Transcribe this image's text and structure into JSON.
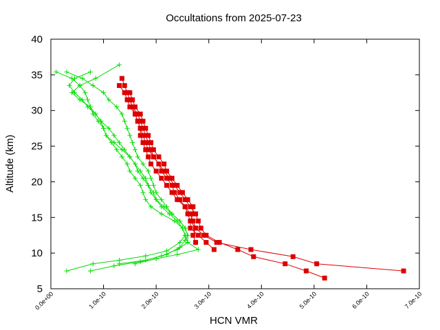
{
  "chart_data": {
    "type": "scatter",
    "title": "Occultations from 2025-07-23",
    "xlabel": "HCN VMR",
    "ylabel": "Altitude (km)",
    "xlim": [
      0,
      7e-10
    ],
    "ylim": [
      5,
      40
    ],
    "x_ticks": [
      0,
      1e-10,
      2e-10,
      3e-10,
      4e-10,
      5e-10,
      6e-10,
      7e-10
    ],
    "x_tick_labels": [
      "0.0e+00",
      "1.0e-10",
      "2.0e-10",
      "3.0e-10",
      "4.0e-10",
      "5.0e-10",
      "6.0e-10",
      "7.0e-10"
    ],
    "y_ticks": [
      5,
      10,
      15,
      20,
      25,
      30,
      35,
      40
    ],
    "y_tick_labels": [
      "5",
      "10",
      "15",
      "20",
      "25",
      "30",
      "35",
      "40"
    ],
    "grid": false,
    "legend": "none",
    "series": [
      {
        "color": "#00dd00",
        "marker": "plus",
        "points": [
          [
            3e-11,
            7.5
          ],
          [
            8e-11,
            8.5
          ],
          [
            1.3e-10,
            9.0
          ],
          [
            1.8e-10,
            9.6
          ],
          [
            2.2e-10,
            10.3
          ],
          [
            2.45e-10,
            11.5
          ],
          [
            2.55e-10,
            12.5
          ],
          [
            2.5e-10,
            13.5
          ],
          [
            2.35e-10,
            14.5
          ],
          [
            2.1e-10,
            15.5
          ],
          [
            1.9e-10,
            16.5
          ],
          [
            1.8e-10,
            17.5
          ],
          [
            1.75e-10,
            18.5
          ],
          [
            1.7e-10,
            19.5
          ],
          [
            1.6e-10,
            20.5
          ],
          [
            1.5e-10,
            21.5
          ],
          [
            1.45e-10,
            22.5
          ],
          [
            1.35e-10,
            23.5
          ],
          [
            1.25e-10,
            24.5
          ],
          [
            1.15e-10,
            25.5
          ],
          [
            1.05e-10,
            26.5
          ],
          [
            1e-10,
            27.5
          ],
          [
            9e-11,
            28.5
          ],
          [
            8e-11,
            29.5
          ],
          [
            7.5e-11,
            30.5
          ],
          [
            7e-11,
            31.5
          ],
          [
            6.5e-11,
            32.5
          ],
          [
            5.5e-11,
            33.5
          ],
          [
            4e-11,
            34.5
          ],
          [
            1e-11,
            35.4
          ]
        ]
      },
      {
        "color": "#00dd00",
        "marker": "plus",
        "points": [
          [
            7.5e-11,
            7.5
          ],
          [
            1.2e-10,
            8.2
          ],
          [
            1.7e-10,
            8.8
          ],
          [
            2.1e-10,
            9.6
          ],
          [
            2.4e-10,
            10.5
          ],
          [
            2.6e-10,
            11.5
          ],
          [
            2.6e-10,
            12.5
          ],
          [
            2.55e-10,
            13.5
          ],
          [
            2.45e-10,
            14.5
          ],
          [
            2.3e-10,
            15.5
          ],
          [
            2.15e-10,
            16.5
          ],
          [
            2e-10,
            17.5
          ],
          [
            1.9e-10,
            18.5
          ],
          [
            1.85e-10,
            19.5
          ],
          [
            1.8e-10,
            20.5
          ],
          [
            1.7e-10,
            21.5
          ],
          [
            1.6e-10,
            22.5
          ],
          [
            1.5e-10,
            23.5
          ],
          [
            1.35e-10,
            24.5
          ],
          [
            1.2e-10,
            25.5
          ],
          [
            1.05e-10,
            26.5
          ],
          [
            1e-10,
            27.5
          ],
          [
            9.5e-11,
            28.5
          ],
          [
            8.5e-11,
            29.5
          ],
          [
            7e-11,
            30.5
          ],
          [
            6e-11,
            31.5
          ],
          [
            4.5e-11,
            32.5
          ],
          [
            3.5e-11,
            33.5
          ],
          [
            4.5e-11,
            34.5
          ],
          [
            7.5e-11,
            35.4
          ]
        ]
      },
      {
        "color": "#00dd00",
        "marker": "plus",
        "points": [
          [
            1.6e-10,
            8.5
          ],
          [
            2e-10,
            9.2
          ],
          [
            2.4e-10,
            9.8
          ],
          [
            2.8e-10,
            10.5
          ],
          [
            2.6e-10,
            11.5
          ],
          [
            2.55e-10,
            12.5
          ],
          [
            2.5e-10,
            13.5
          ],
          [
            2.4e-10,
            14.5
          ],
          [
            2.25e-10,
            15.5
          ],
          [
            2.1e-10,
            16.5
          ],
          [
            2e-10,
            17.5
          ],
          [
            1.95e-10,
            18.5
          ],
          [
            1.85e-10,
            19.5
          ],
          [
            1.75e-10,
            20.5
          ],
          [
            1.65e-10,
            21.5
          ],
          [
            1.6e-10,
            22.5
          ],
          [
            1.5e-10,
            23.5
          ],
          [
            1.4e-10,
            24.5
          ],
          [
            1.3e-10,
            25.5
          ],
          [
            1.2e-10,
            26.5
          ],
          [
            1.1e-10,
            27.5
          ],
          [
            9.5e-11,
            28.5
          ],
          [
            8.5e-11,
            29.5
          ],
          [
            7.5e-11,
            30.5
          ],
          [
            5.5e-11,
            31.5
          ],
          [
            4e-11,
            32.5
          ],
          [
            5.5e-11,
            33.5
          ],
          [
            8.5e-11,
            34.5
          ],
          [
            1.3e-10,
            36.4
          ]
        ]
      },
      {
        "color": "#00dd00",
        "marker": "plus",
        "points": [
          [
            1.3e-10,
            8.5
          ],
          [
            1.8e-10,
            9.0
          ],
          [
            2.2e-10,
            9.8
          ],
          [
            2.45e-10,
            10.8
          ],
          [
            2.55e-10,
            11.8
          ],
          [
            2.6e-10,
            12.5
          ],
          [
            2.55e-10,
            13.5
          ],
          [
            2.45e-10,
            14.5
          ],
          [
            2.3e-10,
            15.5
          ],
          [
            2.2e-10,
            16.5
          ],
          [
            2.1e-10,
            17.5
          ],
          [
            2e-10,
            18.5
          ],
          [
            1.95e-10,
            19.5
          ],
          [
            1.9e-10,
            20.5
          ],
          [
            1.85e-10,
            21.5
          ],
          [
            1.75e-10,
            22.5
          ],
          [
            1.65e-10,
            23.5
          ],
          [
            1.6e-10,
            24.5
          ],
          [
            1.55e-10,
            25.5
          ],
          [
            1.5e-10,
            26.5
          ],
          [
            1.45e-10,
            27.5
          ],
          [
            1.4e-10,
            28.5
          ],
          [
            1.35e-10,
            29.5
          ],
          [
            1.25e-10,
            30.5
          ],
          [
            1.1e-10,
            31.5
          ],
          [
            1e-10,
            32.5
          ],
          [
            8e-11,
            33.5
          ],
          [
            6e-11,
            34.5
          ],
          [
            3e-11,
            35.4
          ]
        ]
      },
      {
        "color": "#dd0000",
        "marker": "square",
        "points": [
          [
            5.2e-10,
            6.5
          ],
          [
            4.85e-10,
            7.5
          ],
          [
            4.45e-10,
            8.5
          ],
          [
            3.85e-10,
            9.5
          ],
          [
            3.55e-10,
            10.5
          ],
          [
            3.2e-10,
            11.5
          ],
          [
            2.95e-10,
            12.5
          ],
          [
            2.85e-10,
            13.5
          ],
          [
            2.8e-10,
            14.5
          ],
          [
            2.75e-10,
            15.5
          ],
          [
            2.65e-10,
            16.5
          ],
          [
            2.55e-10,
            17.5
          ],
          [
            2.45e-10,
            18.5
          ],
          [
            2.35e-10,
            19.5
          ],
          [
            2.25e-10,
            20.5
          ],
          [
            2.15e-10,
            21.5
          ],
          [
            2.05e-10,
            22.5
          ],
          [
            1.95e-10,
            23.5
          ],
          [
            1.9e-10,
            24.5
          ],
          [
            1.85e-10,
            25.5
          ],
          [
            1.8e-10,
            26.5
          ],
          [
            1.75e-10,
            27.5
          ],
          [
            1.7e-10,
            28.5
          ],
          [
            1.65e-10,
            29.5
          ],
          [
            1.55e-10,
            30.5
          ],
          [
            1.5e-10,
            31.5
          ],
          [
            1.45e-10,
            32.5
          ],
          [
            1.4e-10,
            33.5
          ],
          [
            1.35e-10,
            34.5
          ]
        ]
      },
      {
        "color": "#dd0000",
        "marker": "square",
        "points": [
          [
            6.7e-10,
            7.5
          ],
          [
            5.05e-10,
            8.5
          ],
          [
            4.6e-10,
            9.5
          ],
          [
            3.8e-10,
            10.5
          ],
          [
            3.15e-10,
            11.5
          ],
          [
            2.9e-10,
            12.5
          ],
          [
            2.75e-10,
            13.5
          ],
          [
            2.65e-10,
            14.5
          ],
          [
            2.6e-10,
            15.5
          ],
          [
            2.55e-10,
            16.5
          ],
          [
            2.45e-10,
            17.5
          ],
          [
            2.35e-10,
            18.5
          ],
          [
            2.3e-10,
            19.5
          ],
          [
            2.2e-10,
            20.5
          ],
          [
            2.1e-10,
            21.5
          ],
          [
            2.05e-10,
            22.5
          ],
          [
            1.95e-10,
            23.5
          ],
          [
            1.85e-10,
            24.5
          ],
          [
            1.8e-10,
            25.5
          ],
          [
            1.75e-10,
            26.5
          ],
          [
            1.7e-10,
            27.5
          ],
          [
            1.65e-10,
            28.5
          ],
          [
            1.6e-10,
            29.5
          ],
          [
            1.5e-10,
            30.5
          ],
          [
            1.45e-10,
            31.5
          ],
          [
            1.4e-10,
            32.5
          ],
          [
            1.3e-10,
            33.5
          ]
        ]
      },
      {
        "color": "#dd0000",
        "marker": "square",
        "points": [
          [
            3.1e-10,
            10.5
          ],
          [
            2.95e-10,
            11.5
          ],
          [
            2.8e-10,
            12.5
          ],
          [
            2.65e-10,
            13.5
          ],
          [
            2.65e-10,
            14.5
          ],
          [
            2.7e-10,
            15.5
          ],
          [
            2.7e-10,
            16.5
          ],
          [
            2.6e-10,
            17.5
          ],
          [
            2.5e-10,
            18.5
          ],
          [
            2.4e-10,
            19.5
          ],
          [
            2.3e-10,
            20.5
          ],
          [
            2.2e-10,
            21.5
          ],
          [
            2.15e-10,
            22.5
          ],
          [
            2.05e-10,
            23.5
          ],
          [
            1.95e-10,
            24.5
          ],
          [
            1.9e-10,
            25.5
          ],
          [
            1.85e-10,
            26.5
          ],
          [
            1.8e-10,
            27.5
          ],
          [
            1.75e-10,
            28.5
          ],
          [
            1.7e-10,
            29.5
          ],
          [
            1.6e-10,
            30.5
          ],
          [
            1.55e-10,
            31.5
          ],
          [
            1.5e-10,
            32.5
          ]
        ]
      },
      {
        "color": "#dd0000",
        "marker": "square",
        "points": [
          [
            2.75e-10,
            11.5
          ],
          [
            2.7e-10,
            12.5
          ],
          [
            2.75e-10,
            13.5
          ],
          [
            2.7e-10,
            14.5
          ],
          [
            2.65e-10,
            15.5
          ],
          [
            2.55e-10,
            16.5
          ],
          [
            2.4e-10,
            17.5
          ],
          [
            2.3e-10,
            18.5
          ],
          [
            2.2e-10,
            19.5
          ],
          [
            2.1e-10,
            20.5
          ],
          [
            2e-10,
            21.5
          ],
          [
            1.9e-10,
            22.5
          ],
          [
            1.85e-10,
            23.5
          ],
          [
            1.8e-10,
            24.5
          ],
          [
            1.75e-10,
            25.5
          ],
          [
            1.7e-10,
            26.5
          ],
          [
            1.7e-10,
            27.5
          ],
          [
            1.65e-10,
            28.5
          ],
          [
            1.6e-10,
            29.5
          ],
          [
            1.55e-10,
            30.5
          ],
          [
            1.5e-10,
            31.5
          ]
        ]
      }
    ]
  }
}
